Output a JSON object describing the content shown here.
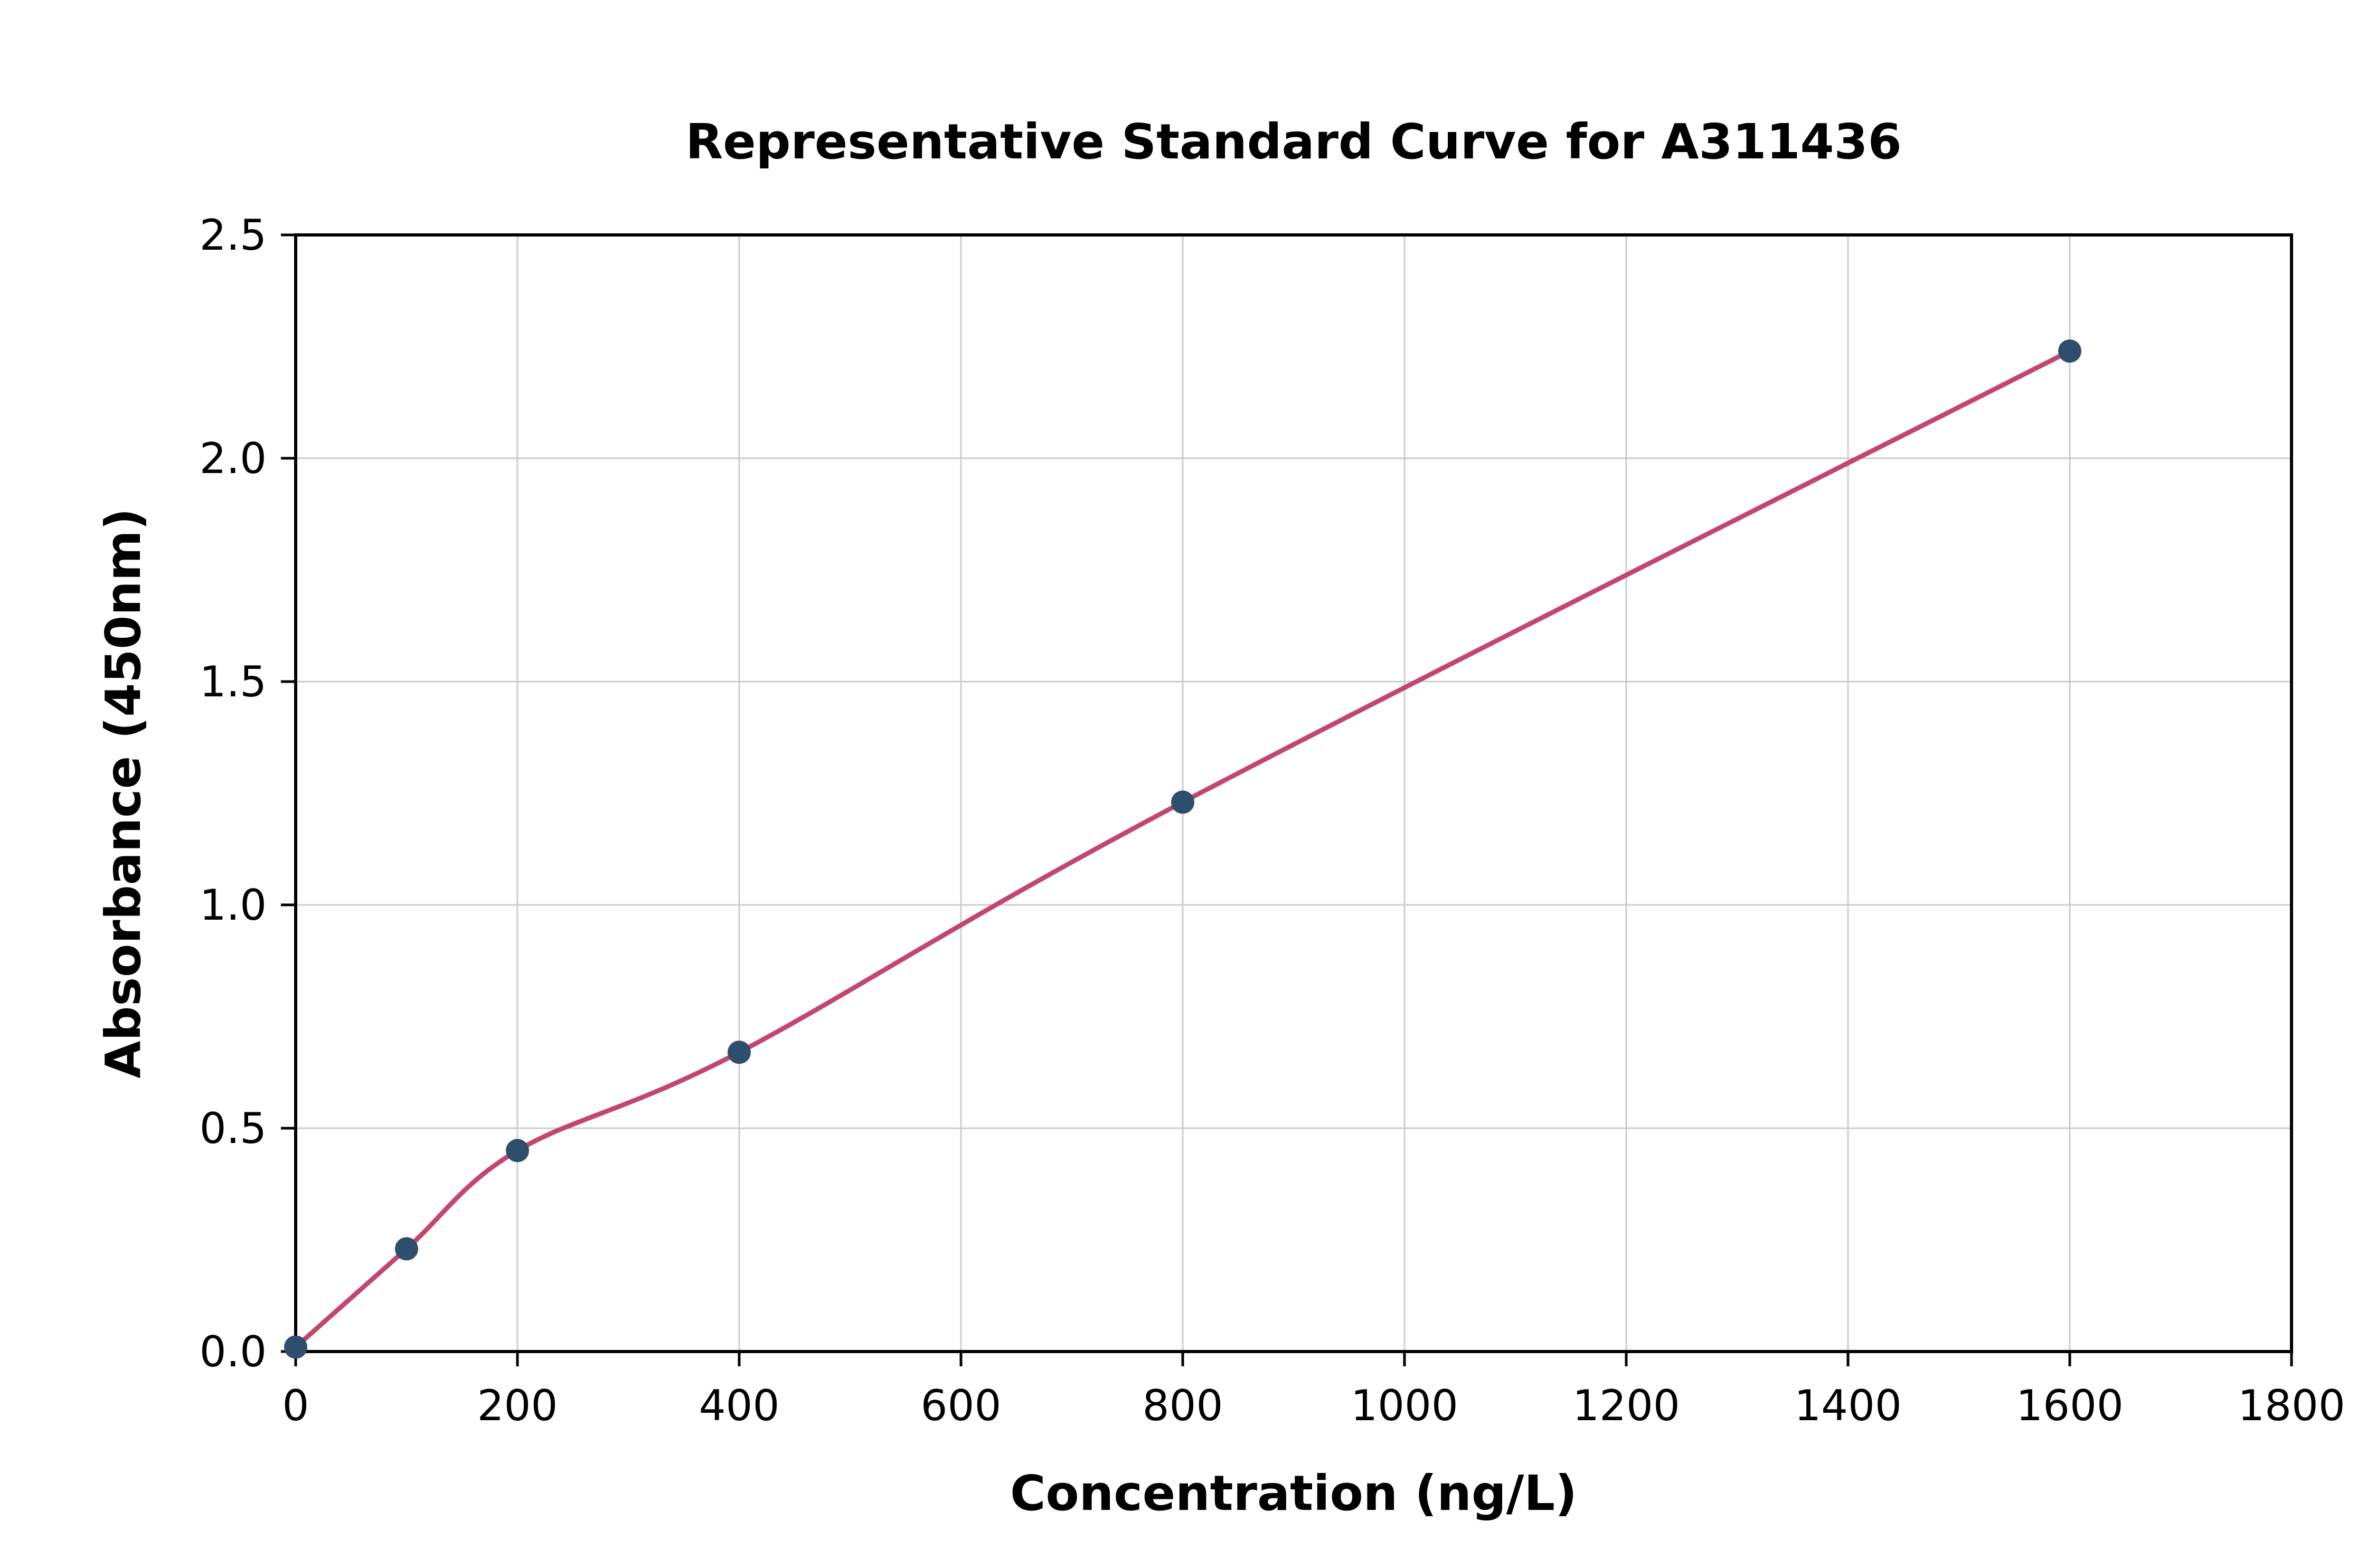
{
  "chart_data": {
    "type": "scatter",
    "title": "Representative Standard Curve for A311436",
    "xlabel": "Concentration (ng/L)",
    "ylabel": "Absorbance (450nm)",
    "xlim": [
      0,
      1800
    ],
    "ylim": [
      0,
      2.5
    ],
    "xticks": [
      0,
      200,
      400,
      600,
      800,
      1000,
      1200,
      1400,
      1600,
      1800
    ],
    "yticks": [
      "0.0",
      "0.5",
      "1.0",
      "1.5",
      "2.0",
      "2.5"
    ],
    "grid": true,
    "legend": "none",
    "series": [
      {
        "name": "standard-curve",
        "points": [
          [
            0,
            0.01
          ],
          [
            100,
            0.23
          ],
          [
            200,
            0.45
          ],
          [
            400,
            0.67
          ],
          [
            800,
            1.23
          ],
          [
            1600,
            2.24
          ]
        ]
      }
    ],
    "curve_style": "smooth power-law fit through data points, from (0,0.01) to (1600,2.24)",
    "colors": {
      "curve": "#c2466e",
      "point": "#2f4d6d",
      "grid": "#cccccc",
      "axis": "#000000",
      "background": "#ffffff"
    }
  }
}
